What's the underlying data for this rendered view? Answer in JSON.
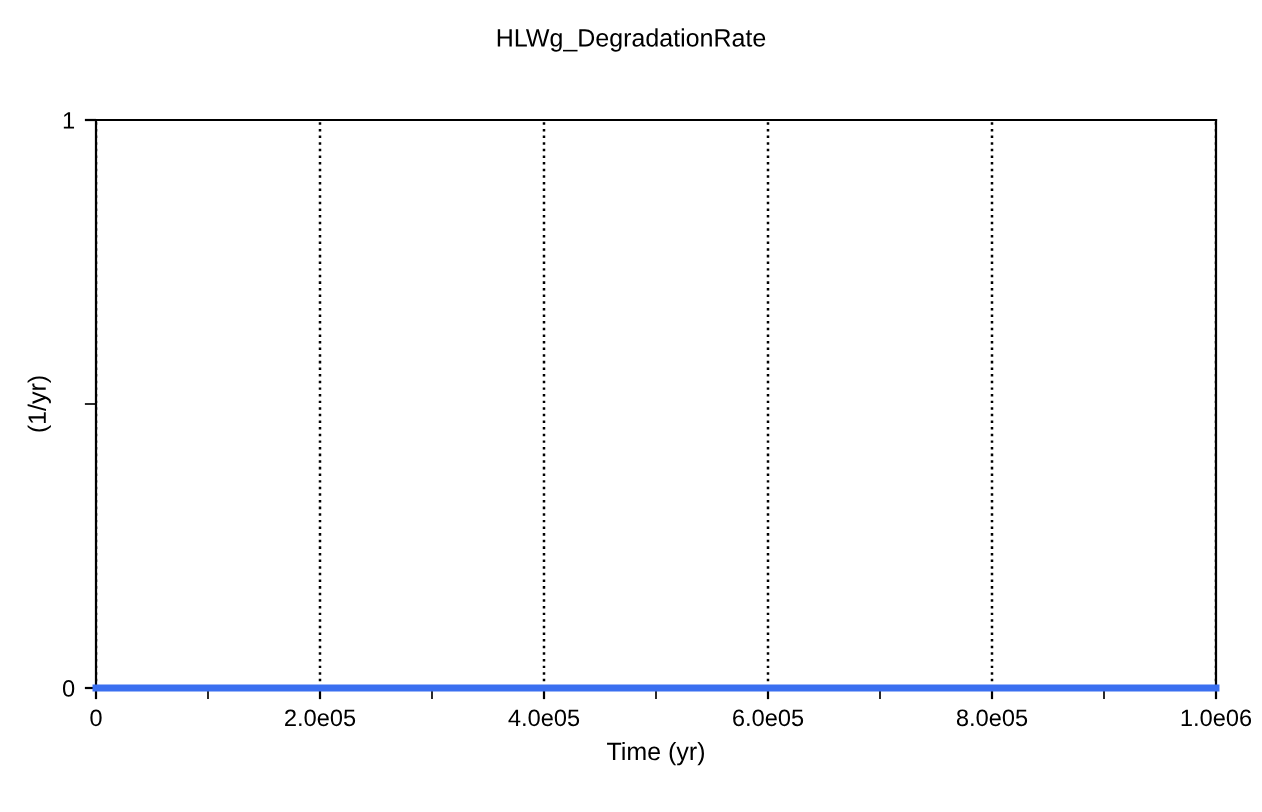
{
  "chart_data": {
    "type": "line",
    "title": "HLWg_DegradationRate",
    "xlabel": "Time (yr)",
    "ylabel": "(1/yr)",
    "series": [
      {
        "color": "#3a6ff0",
        "x": [
          0,
          1000000
        ],
        "values": [
          0,
          0
        ]
      }
    ],
    "xlim": [
      0,
      1000000
    ],
    "ylim": [
      0,
      1
    ],
    "xticks": [
      0,
      {
        "value": 100000,
        "label": null
      },
      {
        "value": 200000,
        "label": "2.0e05"
      },
      {
        "value": 300000,
        "label": null
      },
      {
        "value": 400000,
        "label": "4.0e05"
      },
      {
        "value": 500000,
        "label": null
      },
      {
        "value": 600000,
        "label": "6.0e05"
      },
      {
        "value": 700000,
        "label": null
      },
      {
        "value": 800000,
        "label": "8.0e05"
      },
      {
        "value": 900000,
        "label": null
      },
      {
        "value": 1000000,
        "label": "1.0e06"
      }
    ],
    "yticks": [
      0,
      {
        "value": 0.5,
        "label": null
      },
      1
    ],
    "grid": "x",
    "line_style": "solid",
    "marker": "none"
  }
}
